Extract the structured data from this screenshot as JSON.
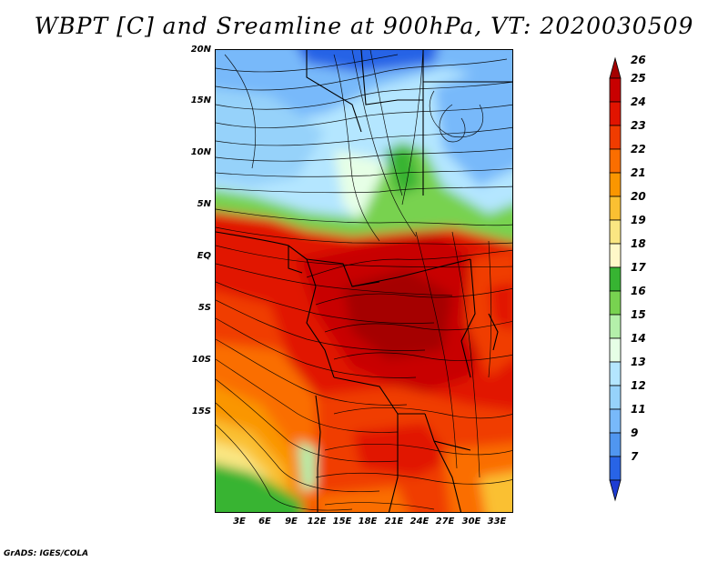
{
  "title": "WBPT [C] and Sreamline at 900hPa, VT: 2020030509",
  "footer": "GrADS: IGES/COLA",
  "lat_labels": [
    "20N",
    "15N",
    "10N",
    "5N",
    "EQ",
    "5S",
    "10S",
    "15S"
  ],
  "lon_labels": [
    "3E",
    "6E",
    "9E",
    "12E",
    "15E",
    "18E",
    "21E",
    "24E",
    "27E",
    "30E",
    "33E"
  ],
  "colorbar": {
    "labels": [
      "26",
      "25",
      "24",
      "23",
      "22",
      "21",
      "20",
      "19",
      "18",
      "17",
      "16",
      "15",
      "14",
      "13",
      "12",
      "11",
      "9",
      "7"
    ],
    "colors": [
      "#a50000",
      "#c80000",
      "#e11400",
      "#f03c00",
      "#fa6e00",
      "#fa9600",
      "#fac032",
      "#fae682",
      "#fff8c8",
      "#37b432",
      "#78d250",
      "#b4f0aa",
      "#e6ffe6",
      "#b4e6ff",
      "#96d2fa",
      "#78b9fa",
      "#5096f0",
      "#2864e6",
      "#1e3cd2"
    ]
  }
}
